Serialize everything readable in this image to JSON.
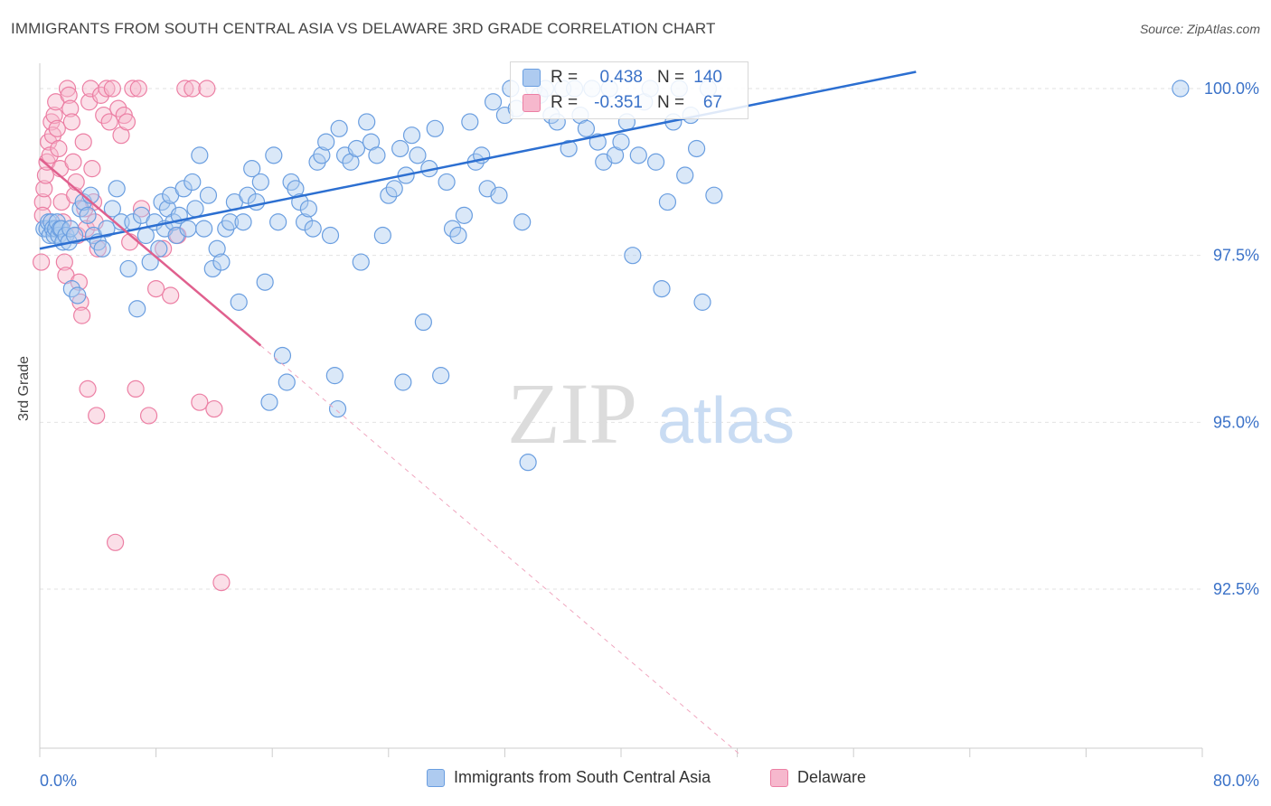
{
  "title": "IMMIGRANTS FROM SOUTH CENTRAL ASIA VS DELAWARE 3RD GRADE CORRELATION CHART",
  "source": "Source: ZipAtlas.com",
  "watermark": {
    "zip": "ZIP",
    "atlas": "atlas"
  },
  "stats": {
    "blue": {
      "r_label": "R =",
      "r_value": "0.438",
      "n_label": "N =",
      "n_value": "140"
    },
    "pink": {
      "r_label": "R =",
      "r_value": "-0.351",
      "n_label": "N =",
      "n_value": "67"
    }
  },
  "legend": {
    "blue": "Immigrants from South Central Asia",
    "pink": "Delaware"
  },
  "colors": {
    "blue": "#6a9ee0",
    "blue_fill": "#aecbf0",
    "blue_line": "#2c6fd1",
    "pink": "#ec7fa4",
    "pink_fill": "#f6b8cd",
    "pink_line": "#e0608e",
    "axis_text": "#3b72c8"
  },
  "chart_data": {
    "type": "scatter",
    "title": "IMMIGRANTS FROM SOUTH CENTRAL ASIA VS DELAWARE 3RD GRADE CORRELATION CHART",
    "xlabel": "",
    "ylabel": "3rd Grade",
    "xlim": [
      0,
      80
    ],
    "ylim": [
      90.0,
      100.3
    ],
    "x_tick_labels": [
      "0.0%",
      "80.0%"
    ],
    "y_ticks": [
      100.0,
      97.5,
      95.0,
      92.5
    ],
    "y_tick_labels": [
      "100.0%",
      "97.5%",
      "95.0%",
      "92.5%"
    ],
    "grid": true,
    "legend_position": "bottom",
    "series": [
      {
        "name": "Immigrants from South Central Asia",
        "color": "#6a9ee0",
        "trend": {
          "x": [
            0,
            60.3
          ],
          "y": [
            97.6,
            100.25
          ]
        },
        "points": [
          [
            0.3,
            97.9
          ],
          [
            0.5,
            97.9
          ],
          [
            0.6,
            98.0
          ],
          [
            0.7,
            97.8
          ],
          [
            0.8,
            98.0
          ],
          [
            0.9,
            97.9
          ],
          [
            1.0,
            97.8
          ],
          [
            1.1,
            97.9
          ],
          [
            1.2,
            98.0
          ],
          [
            1.3,
            97.8
          ],
          [
            1.4,
            97.9
          ],
          [
            1.5,
            97.9
          ],
          [
            1.6,
            97.7
          ],
          [
            1.8,
            97.8
          ],
          [
            2.0,
            97.7
          ],
          [
            2.1,
            97.9
          ],
          [
            2.2,
            97.0
          ],
          [
            2.4,
            97.8
          ],
          [
            2.6,
            96.9
          ],
          [
            2.8,
            98.2
          ],
          [
            3.0,
            98.3
          ],
          [
            3.3,
            98.1
          ],
          [
            3.5,
            98.4
          ],
          [
            3.7,
            97.8
          ],
          [
            4.0,
            97.7
          ],
          [
            4.3,
            97.6
          ],
          [
            4.6,
            97.9
          ],
          [
            5.0,
            98.2
          ],
          [
            5.3,
            98.5
          ],
          [
            5.6,
            98.0
          ],
          [
            6.1,
            97.3
          ],
          [
            6.4,
            98.0
          ],
          [
            6.7,
            96.7
          ],
          [
            7.0,
            98.1
          ],
          [
            7.3,
            97.8
          ],
          [
            7.6,
            97.4
          ],
          [
            7.9,
            98.0
          ],
          [
            8.2,
            97.6
          ],
          [
            8.4,
            98.3
          ],
          [
            8.6,
            97.9
          ],
          [
            8.8,
            98.2
          ],
          [
            9.0,
            98.4
          ],
          [
            9.2,
            98.0
          ],
          [
            9.4,
            97.8
          ],
          [
            9.6,
            98.1
          ],
          [
            9.9,
            98.5
          ],
          [
            10.2,
            97.9
          ],
          [
            10.5,
            98.6
          ],
          [
            10.7,
            98.2
          ],
          [
            11.0,
            99.0
          ],
          [
            11.3,
            97.9
          ],
          [
            11.6,
            98.4
          ],
          [
            11.9,
            97.3
          ],
          [
            12.2,
            97.6
          ],
          [
            12.5,
            97.4
          ],
          [
            12.8,
            97.9
          ],
          [
            13.1,
            98.0
          ],
          [
            13.4,
            98.3
          ],
          [
            13.7,
            96.8
          ],
          [
            14.0,
            98.0
          ],
          [
            14.3,
            98.4
          ],
          [
            14.6,
            98.8
          ],
          [
            14.9,
            98.3
          ],
          [
            15.2,
            98.6
          ],
          [
            15.5,
            97.1
          ],
          [
            15.8,
            95.3
          ],
          [
            16.1,
            99.0
          ],
          [
            16.4,
            98.0
          ],
          [
            16.7,
            96.0
          ],
          [
            17.0,
            95.6
          ],
          [
            17.3,
            98.6
          ],
          [
            17.6,
            98.5
          ],
          [
            17.9,
            98.3
          ],
          [
            18.2,
            98.0
          ],
          [
            18.5,
            98.2
          ],
          [
            18.8,
            97.9
          ],
          [
            19.1,
            98.9
          ],
          [
            19.4,
            99.0
          ],
          [
            19.7,
            99.2
          ],
          [
            20.0,
            97.8
          ],
          [
            20.3,
            95.7
          ],
          [
            20.6,
            99.4
          ],
          [
            21.0,
            99.0
          ],
          [
            21.4,
            98.9
          ],
          [
            21.8,
            99.1
          ],
          [
            22.1,
            97.4
          ],
          [
            22.5,
            99.5
          ],
          [
            22.8,
            99.2
          ],
          [
            23.2,
            99.0
          ],
          [
            23.6,
            97.8
          ],
          [
            24.0,
            98.4
          ],
          [
            24.4,
            98.5
          ],
          [
            24.8,
            99.1
          ],
          [
            25.2,
            98.7
          ],
          [
            25.6,
            99.3
          ],
          [
            26.0,
            99.0
          ],
          [
            26.4,
            96.5
          ],
          [
            26.8,
            98.8
          ],
          [
            27.2,
            99.4
          ],
          [
            27.6,
            95.7
          ],
          [
            28.0,
            98.6
          ],
          [
            28.4,
            97.9
          ],
          [
            28.8,
            97.8
          ],
          [
            29.2,
            98.1
          ],
          [
            29.6,
            99.5
          ],
          [
            30.0,
            98.9
          ],
          [
            30.4,
            99.0
          ],
          [
            30.8,
            98.5
          ],
          [
            31.2,
            99.8
          ],
          [
            31.6,
            98.4
          ],
          [
            32.0,
            99.6
          ],
          [
            32.4,
            100.0
          ],
          [
            32.8,
            99.7
          ],
          [
            33.2,
            98.0
          ],
          [
            33.6,
            94.4
          ],
          [
            34.0,
            100.0
          ],
          [
            34.4,
            99.9
          ],
          [
            34.8,
            100.0
          ],
          [
            35.2,
            99.6
          ],
          [
            35.6,
            99.5
          ],
          [
            36.0,
            100.0
          ],
          [
            36.4,
            99.1
          ],
          [
            36.8,
            100.0
          ],
          [
            37.2,
            99.6
          ],
          [
            37.6,
            99.4
          ],
          [
            38.0,
            100.0
          ],
          [
            38.4,
            99.2
          ],
          [
            38.8,
            98.9
          ],
          [
            39.2,
            100.0
          ],
          [
            39.6,
            99.0
          ],
          [
            40.0,
            99.2
          ],
          [
            40.4,
            99.5
          ],
          [
            40.8,
            97.5
          ],
          [
            41.2,
            99.0
          ],
          [
            41.6,
            99.8
          ],
          [
            42.0,
            100.0
          ],
          [
            42.4,
            98.9
          ],
          [
            42.8,
            97.0
          ],
          [
            43.2,
            98.3
          ],
          [
            43.6,
            99.5
          ],
          [
            44.0,
            100.0
          ],
          [
            44.4,
            98.7
          ],
          [
            44.8,
            99.6
          ],
          [
            45.2,
            99.1
          ],
          [
            45.6,
            96.8
          ],
          [
            46.0,
            100.0
          ],
          [
            46.4,
            98.4
          ],
          [
            78.5,
            100.0
          ],
          [
            20.5,
            95.2
          ],
          [
            25.0,
            95.6
          ]
        ]
      },
      {
        "name": "Delaware",
        "color": "#ec7fa4",
        "trend": {
          "x": [
            0,
            15.2
          ],
          "y": [
            98.95,
            96.15
          ]
        },
        "trend_dashed": {
          "x": [
            15.2,
            48.3
          ],
          "y": [
            96.15,
            90.0
          ]
        },
        "points": [
          [
            0.1,
            97.4
          ],
          [
            0.2,
            98.3
          ],
          [
            0.3,
            98.5
          ],
          [
            0.4,
            98.7
          ],
          [
            0.5,
            98.9
          ],
          [
            0.6,
            99.2
          ],
          [
            0.7,
            99.0
          ],
          [
            0.8,
            99.5
          ],
          [
            0.9,
            99.3
          ],
          [
            1.0,
            99.6
          ],
          [
            1.1,
            99.8
          ],
          [
            1.2,
            99.4
          ],
          [
            1.3,
            99.1
          ],
          [
            1.4,
            98.8
          ],
          [
            1.5,
            98.3
          ],
          [
            1.6,
            98.0
          ],
          [
            1.7,
            97.4
          ],
          [
            1.8,
            97.2
          ],
          [
            1.9,
            100.0
          ],
          [
            2.0,
            99.9
          ],
          [
            2.1,
            99.7
          ],
          [
            2.2,
            99.5
          ],
          [
            2.3,
            98.9
          ],
          [
            2.4,
            98.4
          ],
          [
            2.5,
            98.6
          ],
          [
            2.6,
            97.8
          ],
          [
            2.7,
            97.1
          ],
          [
            2.8,
            96.8
          ],
          [
            2.9,
            96.6
          ],
          [
            3.0,
            99.2
          ],
          [
            3.1,
            98.2
          ],
          [
            3.2,
            97.9
          ],
          [
            3.3,
            95.5
          ],
          [
            3.4,
            99.8
          ],
          [
            3.5,
            100.0
          ],
          [
            3.6,
            98.8
          ],
          [
            3.7,
            98.3
          ],
          [
            3.8,
            98.0
          ],
          [
            3.9,
            95.1
          ],
          [
            4.0,
            97.6
          ],
          [
            4.2,
            99.9
          ],
          [
            4.4,
            99.6
          ],
          [
            4.6,
            100.0
          ],
          [
            4.8,
            99.5
          ],
          [
            5.0,
            100.0
          ],
          [
            5.2,
            93.2
          ],
          [
            5.4,
            99.7
          ],
          [
            5.6,
            99.3
          ],
          [
            5.8,
            99.6
          ],
          [
            6.0,
            99.5
          ],
          [
            6.2,
            97.7
          ],
          [
            6.4,
            100.0
          ],
          [
            6.6,
            95.5
          ],
          [
            6.8,
            100.0
          ],
          [
            7.0,
            98.2
          ],
          [
            7.5,
            95.1
          ],
          [
            8.0,
            97.0
          ],
          [
            8.5,
            97.6
          ],
          [
            9.0,
            96.9
          ],
          [
            9.5,
            97.8
          ],
          [
            10.0,
            100.0
          ],
          [
            10.5,
            100.0
          ],
          [
            11.0,
            95.3
          ],
          [
            11.5,
            100.0
          ],
          [
            12.0,
            95.2
          ],
          [
            12.5,
            92.6
          ],
          [
            0.2,
            98.1
          ]
        ]
      }
    ]
  }
}
